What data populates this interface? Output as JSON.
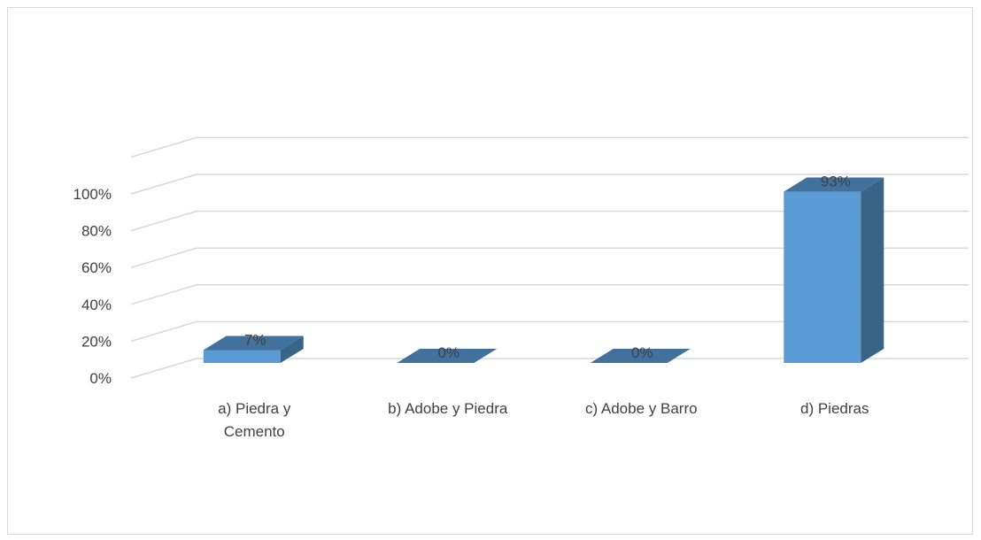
{
  "chart_data": {
    "type": "bar",
    "style": "3d-column",
    "title": "",
    "xlabel": "",
    "ylabel": "",
    "categories": [
      "a) Piedra y Cemento",
      "b) Adobe y Piedra",
      "c) Adobe y Barro",
      "d) Piedras"
    ],
    "category_lines": [
      [
        "a) Piedra y",
        "Cemento"
      ],
      [
        "b) Adobe y Piedra"
      ],
      [
        "c) Adobe y Barro"
      ],
      [
        "d) Piedras"
      ]
    ],
    "values": [
      7,
      0,
      0,
      93
    ],
    "data_labels": [
      "7%",
      "0%",
      "0%",
      "93%"
    ],
    "ylim": [
      0,
      100
    ],
    "yticks": [
      0,
      20,
      40,
      60,
      80,
      100
    ],
    "ytick_labels": [
      "0%",
      "20%",
      "40%",
      "60%",
      "80%",
      "100%"
    ],
    "grid": true,
    "legend": "none",
    "colors": {
      "front": "#5b9bd5",
      "top": "#41719c",
      "side": "#386488",
      "grid": "#d9d9d9",
      "text": "#404040"
    }
  }
}
